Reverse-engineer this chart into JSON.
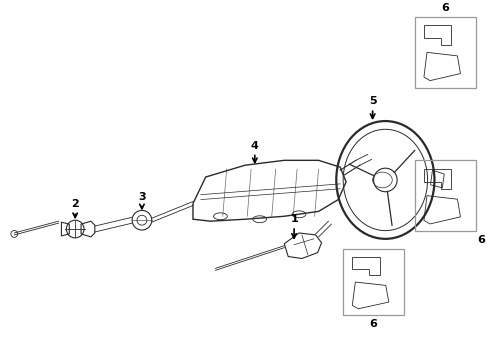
{
  "background_color": "#ffffff",
  "line_color": "#2a2a2a",
  "label_color": "#000000",
  "box_border_color": "#999999",
  "parts_labels": [
    "1",
    "2",
    "3",
    "4",
    "5",
    "6",
    "6",
    "6"
  ]
}
